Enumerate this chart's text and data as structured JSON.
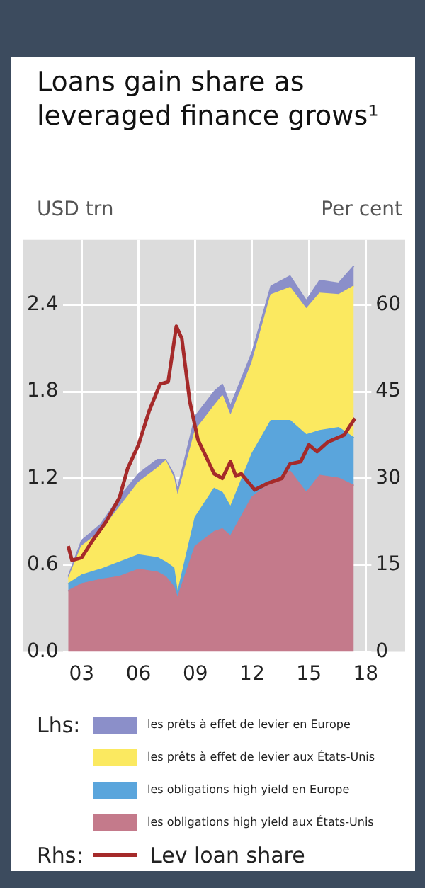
{
  "chart_data": {
    "type": "area",
    "title": "Loans gain share as leveraged finance grows¹",
    "ylabel": "USD trn",
    "y2label": "Per cent",
    "x": [
      2002.29,
      2003.0,
      2004.0,
      2005.0,
      2006.0,
      2007.0,
      2007.43,
      2007.86,
      2008.06,
      2009.0,
      2010.0,
      2010.43,
      2010.86,
      2012.0,
      2013.0,
      2014.0,
      2014.86,
      2015.57,
      2016.57,
      2017.37
    ],
    "stacked": true,
    "series": [
      {
        "name": "les obligations high yield aux États-Unis",
        "color": "#c47a8b",
        "values": [
          0.42,
          0.47,
          0.5,
          0.52,
          0.57,
          0.55,
          0.52,
          0.45,
          0.37,
          0.73,
          0.83,
          0.85,
          0.8,
          1.07,
          1.17,
          1.25,
          1.1,
          1.22,
          1.2,
          1.15
        ]
      },
      {
        "name": "les obligations high yield en Europe",
        "color": "#5aa5dc",
        "values": [
          0.05,
          0.06,
          0.07,
          0.1,
          0.1,
          0.1,
          0.1,
          0.13,
          0.03,
          0.2,
          0.3,
          0.25,
          0.2,
          0.3,
          0.43,
          0.35,
          0.4,
          0.31,
          0.35,
          0.33
        ]
      },
      {
        "name": "les prêts à effet de levier aux États-Unis",
        "color": "#fbe960",
        "values": [
          0.03,
          0.2,
          0.26,
          0.38,
          0.5,
          0.62,
          0.7,
          0.62,
          0.67,
          0.6,
          0.57,
          0.67,
          0.63,
          0.63,
          0.87,
          0.92,
          0.87,
          0.95,
          0.92,
          1.05
        ]
      },
      {
        "name": "les prêts à effet de levier en Europe",
        "color": "#8b8fc9",
        "values": [
          0.02,
          0.04,
          0.05,
          0.07,
          0.06,
          0.06,
          0.01,
          0.03,
          0.05,
          0.1,
          0.1,
          0.08,
          0.07,
          0.07,
          0.06,
          0.08,
          0.06,
          0.09,
          0.08,
          0.14
        ]
      },
      {
        "name": "Lev loan share",
        "type": "line",
        "axis": "y2",
        "color": "#a52a2a",
        "x": [
          2002.29,
          2002.49,
          2003.0,
          2003.57,
          2004.29,
          2005.0,
          2005.43,
          2006.0,
          2006.57,
          2007.14,
          2007.57,
          2008.0,
          2008.29,
          2008.71,
          2009.14,
          2010.0,
          2010.43,
          2010.86,
          2011.14,
          2011.43,
          2012.14,
          2012.86,
          2013.57,
          2014.0,
          2014.57,
          2015.0,
          2015.43,
          2016.0,
          2016.86,
          2017.43
        ],
        "values": [
          18.3,
          15.8,
          16.3,
          19.2,
          22.5,
          26.7,
          31.7,
          35.8,
          41.7,
          46.3,
          46.7,
          56.3,
          54.2,
          43.3,
          36.7,
          30.8,
          30.0,
          32.9,
          30.4,
          30.8,
          28.0,
          29.2,
          30.0,
          32.5,
          32.9,
          35.8,
          34.6,
          36.3,
          37.5,
          40.4
        ]
      }
    ],
    "xlim": [
      2002,
      2018.3
    ],
    "xticks": [
      {
        "value": 2003,
        "label": "03"
      },
      {
        "value": 2006,
        "label": "06"
      },
      {
        "value": 2009,
        "label": "09"
      },
      {
        "value": 2012,
        "label": "12"
      },
      {
        "value": 2015,
        "label": "15"
      },
      {
        "value": 2018,
        "label": "18"
      }
    ],
    "ylim": [
      0,
      2.85
    ],
    "yticks": [
      {
        "value": 0,
        "label": "0.0"
      },
      0.6,
      1.2,
      1.8,
      2.4
    ],
    "y2lim": [
      0,
      71.25
    ],
    "y2ticks": [
      0,
      15,
      30,
      45,
      60
    ],
    "grid": true,
    "marker": "none",
    "legend": "bottom",
    "annotations": [
      "Lhs:",
      "Rhs:"
    ]
  }
}
